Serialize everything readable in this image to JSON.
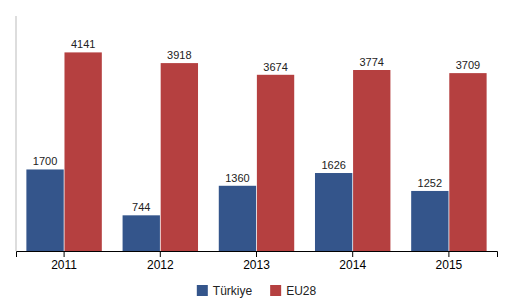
{
  "chart_data": {
    "type": "bar",
    "categories": [
      "2011",
      "2012",
      "2013",
      "2014",
      "2015"
    ],
    "series": [
      {
        "name": "Türkiye",
        "color": "#34558B",
        "values": [
          1700,
          744,
          1360,
          1626,
          1252
        ]
      },
      {
        "name": "EU28",
        "color": "#B54040",
        "values": [
          4141,
          3918,
          3674,
          3774,
          3709
        ]
      }
    ],
    "ylim": [
      0,
      4900
    ],
    "tick_labels": "x",
    "data_labels": true,
    "legend": "bottom"
  }
}
